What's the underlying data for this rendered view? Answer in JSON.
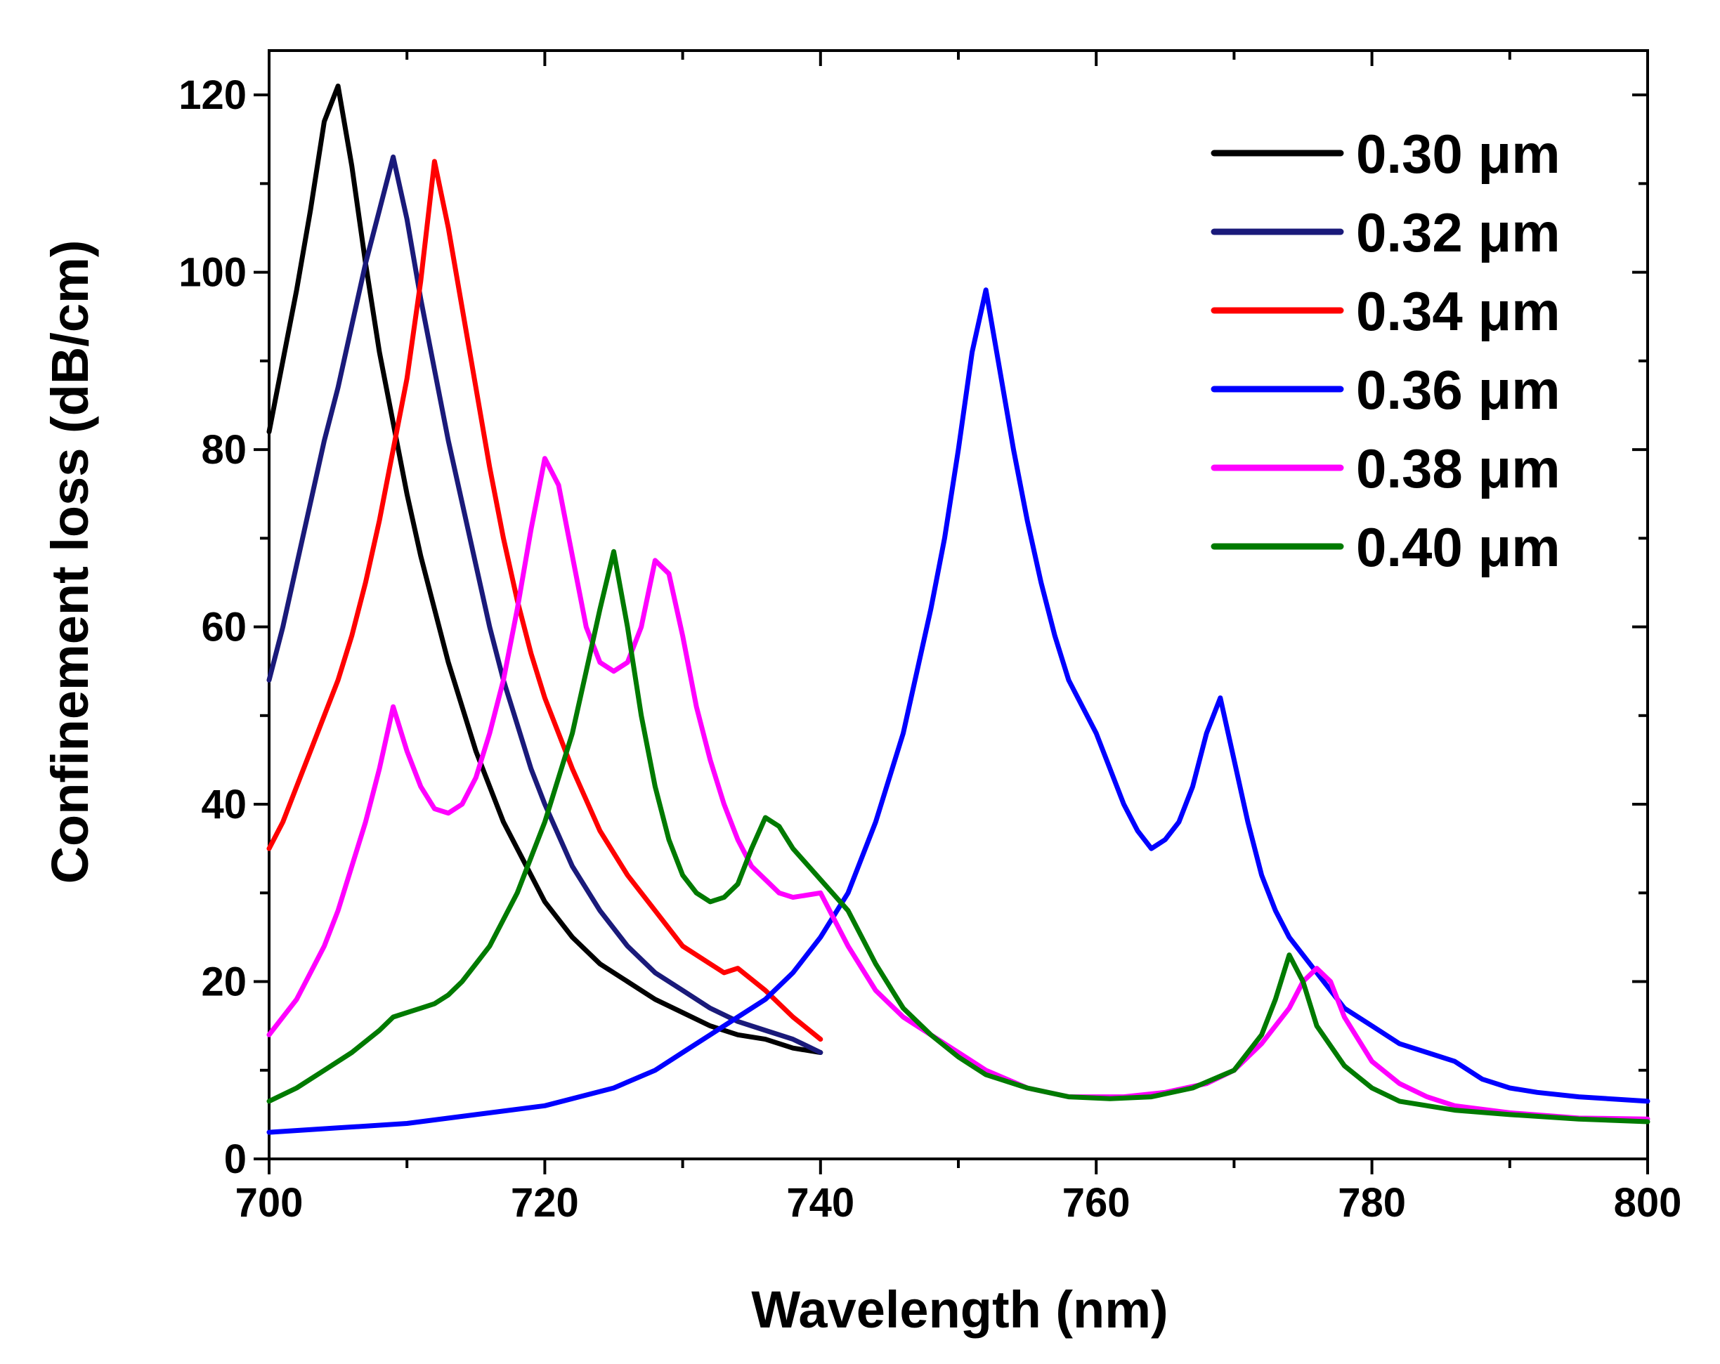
{
  "chart_data": {
    "type": "line",
    "xlabel": "Wavelength (nm)",
    "ylabel": "Confinement loss (dB/cm)",
    "xlim": [
      700,
      800
    ],
    "ylim": [
      0,
      125
    ],
    "x_ticks": [
      700,
      720,
      740,
      760,
      780,
      800
    ],
    "y_ticks": [
      0,
      20,
      40,
      60,
      80,
      100,
      120
    ],
    "x_tick_labels": [
      "700",
      "720",
      "740",
      "760",
      "780",
      "800"
    ],
    "y_tick_labels": [
      "0",
      "20",
      "40",
      "60",
      "80",
      "100",
      "120"
    ],
    "grid": false,
    "legend_position": "top-right",
    "series": [
      {
        "name": "0.30 μm",
        "color": "#000000",
        "points": [
          [
            700,
            82
          ],
          [
            701,
            90
          ],
          [
            702,
            98
          ],
          [
            703,
            107
          ],
          [
            704,
            117
          ],
          [
            705,
            121
          ],
          [
            706,
            112
          ],
          [
            707,
            101
          ],
          [
            708,
            91
          ],
          [
            709,
            83
          ],
          [
            710,
            75
          ],
          [
            711,
            68
          ],
          [
            712,
            62
          ],
          [
            713,
            56
          ],
          [
            714,
            51
          ],
          [
            715,
            46
          ],
          [
            716,
            42
          ],
          [
            717,
            38
          ],
          [
            718,
            35
          ],
          [
            719,
            32
          ],
          [
            720,
            29
          ],
          [
            722,
            25
          ],
          [
            724,
            22
          ],
          [
            726,
            20
          ],
          [
            728,
            18
          ],
          [
            730,
            16.5
          ],
          [
            732,
            15
          ],
          [
            734,
            14
          ],
          [
            736,
            13.5
          ],
          [
            738,
            12.5
          ],
          [
            740,
            12
          ]
        ]
      },
      {
        "name": "0.32 μm",
        "color": "#1a1a7a",
        "points": [
          [
            700,
            54
          ],
          [
            701,
            60
          ],
          [
            702,
            67
          ],
          [
            703,
            74
          ],
          [
            704,
            81
          ],
          [
            705,
            87
          ],
          [
            706,
            94
          ],
          [
            707,
            101
          ],
          [
            708,
            107
          ],
          [
            709,
            113
          ],
          [
            710,
            106
          ],
          [
            711,
            97
          ],
          [
            712,
            89
          ],
          [
            713,
            81
          ],
          [
            714,
            74
          ],
          [
            715,
            67
          ],
          [
            716,
            60
          ],
          [
            717,
            54
          ],
          [
            718,
            49
          ],
          [
            719,
            44
          ],
          [
            720,
            40
          ],
          [
            722,
            33
          ],
          [
            724,
            28
          ],
          [
            726,
            24
          ],
          [
            728,
            21
          ],
          [
            730,
            19
          ],
          [
            732,
            17
          ],
          [
            734,
            15.5
          ],
          [
            736,
            14.5
          ],
          [
            738,
            13.5
          ],
          [
            740,
            12
          ]
        ]
      },
      {
        "name": "0.34 μm",
        "color": "#ff0000",
        "points": [
          [
            700,
            35
          ],
          [
            701,
            38
          ],
          [
            702,
            42
          ],
          [
            703,
            46
          ],
          [
            704,
            50
          ],
          [
            705,
            54
          ],
          [
            706,
            59
          ],
          [
            707,
            65
          ],
          [
            708,
            72
          ],
          [
            709,
            80
          ],
          [
            710,
            88
          ],
          [
            711,
            99
          ],
          [
            712,
            112.5
          ],
          [
            713,
            105
          ],
          [
            714,
            96
          ],
          [
            715,
            87
          ],
          [
            716,
            78
          ],
          [
            717,
            70
          ],
          [
            718,
            63
          ],
          [
            719,
            57
          ],
          [
            720,
            52
          ],
          [
            722,
            44
          ],
          [
            724,
            37
          ],
          [
            726,
            32
          ],
          [
            728,
            28
          ],
          [
            730,
            24
          ],
          [
            732,
            22
          ],
          [
            733,
            21
          ],
          [
            734,
            21.5
          ],
          [
            736,
            19
          ],
          [
            738,
            16
          ],
          [
            740,
            13.5
          ]
        ]
      },
      {
        "name": "0.36 μm",
        "color": "#0000ff",
        "points": [
          [
            700,
            3
          ],
          [
            705,
            3.5
          ],
          [
            710,
            4
          ],
          [
            715,
            5
          ],
          [
            720,
            6
          ],
          [
            725,
            8
          ],
          [
            728,
            10
          ],
          [
            730,
            12
          ],
          [
            732,
            14
          ],
          [
            734,
            16
          ],
          [
            736,
            18
          ],
          [
            738,
            21
          ],
          [
            740,
            25
          ],
          [
            742,
            30
          ],
          [
            744,
            38
          ],
          [
            746,
            48
          ],
          [
            748,
            62
          ],
          [
            749,
            70
          ],
          [
            750,
            80
          ],
          [
            751,
            91
          ],
          [
            752,
            98
          ],
          [
            753,
            89
          ],
          [
            754,
            80
          ],
          [
            755,
            72
          ],
          [
            756,
            65
          ],
          [
            757,
            59
          ],
          [
            758,
            54
          ],
          [
            760,
            48
          ],
          [
            761,
            44
          ],
          [
            762,
            40
          ],
          [
            763,
            37
          ],
          [
            764,
            35
          ],
          [
            765,
            36
          ],
          [
            766,
            38
          ],
          [
            767,
            42
          ],
          [
            768,
            48
          ],
          [
            769,
            52
          ],
          [
            770,
            45
          ],
          [
            771,
            38
          ],
          [
            772,
            32
          ],
          [
            773,
            28
          ],
          [
            774,
            25
          ],
          [
            776,
            21
          ],
          [
            778,
            17
          ],
          [
            780,
            15
          ],
          [
            782,
            13
          ],
          [
            784,
            12
          ],
          [
            786,
            11
          ],
          [
            788,
            9
          ],
          [
            790,
            8
          ],
          [
            792,
            7.5
          ],
          [
            795,
            7
          ],
          [
            800,
            6.5
          ]
        ]
      },
      {
        "name": "0.38 μm",
        "color": "#ff00ff",
        "points": [
          [
            700,
            14
          ],
          [
            701,
            16
          ],
          [
            702,
            18
          ],
          [
            703,
            21
          ],
          [
            704,
            24
          ],
          [
            705,
            28
          ],
          [
            706,
            33
          ],
          [
            707,
            38
          ],
          [
            708,
            44
          ],
          [
            709,
            51
          ],
          [
            710,
            46
          ],
          [
            711,
            42
          ],
          [
            712,
            39.5
          ],
          [
            713,
            39
          ],
          [
            714,
            40
          ],
          [
            715,
            43
          ],
          [
            716,
            48
          ],
          [
            717,
            54
          ],
          [
            718,
            62
          ],
          [
            719,
            71
          ],
          [
            720,
            79
          ],
          [
            721,
            76
          ],
          [
            722,
            68
          ],
          [
            723,
            60
          ],
          [
            724,
            56
          ],
          [
            725,
            55
          ],
          [
            726,
            56
          ],
          [
            727,
            60
          ],
          [
            728,
            67.5
          ],
          [
            729,
            66
          ],
          [
            730,
            59
          ],
          [
            731,
            51
          ],
          [
            732,
            45
          ],
          [
            733,
            40
          ],
          [
            734,
            36
          ],
          [
            735,
            33
          ],
          [
            736,
            31.5
          ],
          [
            737,
            30
          ],
          [
            738,
            29.5
          ],
          [
            740,
            30
          ],
          [
            741,
            27
          ],
          [
            742,
            24
          ],
          [
            744,
            19
          ],
          [
            746,
            16
          ],
          [
            748,
            14
          ],
          [
            750,
            12
          ],
          [
            752,
            10
          ],
          [
            755,
            8
          ],
          [
            758,
            7
          ],
          [
            762,
            7
          ],
          [
            765,
            7.5
          ],
          [
            768,
            8.5
          ],
          [
            770,
            10
          ],
          [
            772,
            13
          ],
          [
            774,
            17
          ],
          [
            775,
            20
          ],
          [
            776,
            21.5
          ],
          [
            777,
            20
          ],
          [
            778,
            16
          ],
          [
            780,
            11
          ],
          [
            782,
            8.5
          ],
          [
            784,
            7
          ],
          [
            786,
            6
          ],
          [
            790,
            5.2
          ],
          [
            795,
            4.6
          ],
          [
            800,
            4.5
          ]
        ]
      },
      {
        "name": "0.40 μm",
        "color": "#007a00",
        "points": [
          [
            700,
            6.5
          ],
          [
            702,
            8
          ],
          [
            704,
            10
          ],
          [
            706,
            12
          ],
          [
            708,
            14.5
          ],
          [
            709,
            16
          ],
          [
            710,
            16.5
          ],
          [
            711,
            17
          ],
          [
            712,
            17.5
          ],
          [
            713,
            18.5
          ],
          [
            714,
            20
          ],
          [
            715,
            22
          ],
          [
            716,
            24
          ],
          [
            717,
            27
          ],
          [
            718,
            30
          ],
          [
            719,
            34
          ],
          [
            720,
            38
          ],
          [
            721,
            43
          ],
          [
            722,
            48
          ],
          [
            723,
            55
          ],
          [
            724,
            62
          ],
          [
            725,
            68.5
          ],
          [
            726,
            60
          ],
          [
            727,
            50
          ],
          [
            728,
            42
          ],
          [
            729,
            36
          ],
          [
            730,
            32
          ],
          [
            731,
            30
          ],
          [
            732,
            29
          ],
          [
            733,
            29.5
          ],
          [
            734,
            31
          ],
          [
            735,
            35
          ],
          [
            736,
            38.5
          ],
          [
            737,
            37.5
          ],
          [
            738,
            35
          ],
          [
            740,
            31.5
          ],
          [
            742,
            28
          ],
          [
            744,
            22
          ],
          [
            746,
            17
          ],
          [
            748,
            14
          ],
          [
            750,
            11.5
          ],
          [
            752,
            9.5
          ],
          [
            755,
            8
          ],
          [
            758,
            7
          ],
          [
            761,
            6.8
          ],
          [
            764,
            7
          ],
          [
            767,
            8
          ],
          [
            770,
            10
          ],
          [
            772,
            14
          ],
          [
            773,
            18
          ],
          [
            774,
            23
          ],
          [
            775,
            20
          ],
          [
            776,
            15
          ],
          [
            778,
            10.5
          ],
          [
            780,
            8
          ],
          [
            782,
            6.5
          ],
          [
            786,
            5.5
          ],
          [
            790,
            5
          ],
          [
            795,
            4.5
          ],
          [
            800,
            4.2
          ]
        ]
      }
    ]
  }
}
